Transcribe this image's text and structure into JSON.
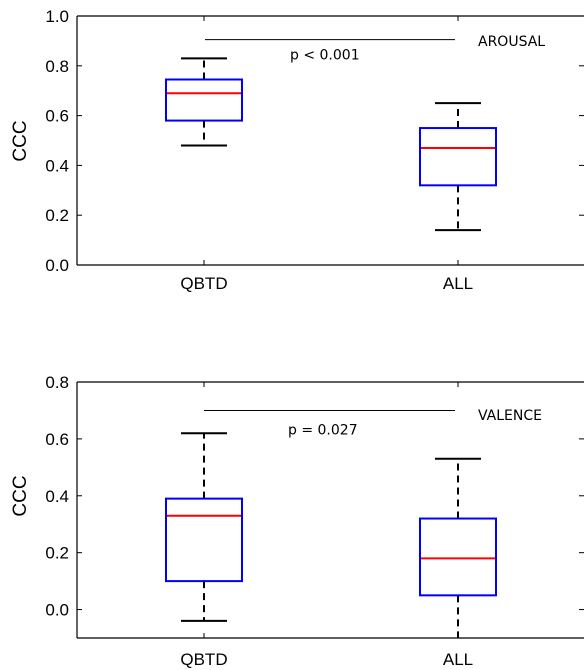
{
  "chart_data": [
    {
      "type": "box",
      "annotation": "AROUSAL",
      "ylabel": "CCC",
      "xlabel": "",
      "ylim": [
        0,
        1
      ],
      "yticks": [
        "0.0",
        "0.2",
        "0.4",
        "0.6",
        "0.8",
        "1.0"
      ],
      "ytick_values": [
        0,
        0.2,
        0.4,
        0.6,
        0.8,
        1.0
      ],
      "categories": [
        "QBTD",
        "ALL"
      ],
      "boxes": [
        {
          "whisker_low": 0.48,
          "q1": 0.58,
          "median": 0.69,
          "q3": 0.745,
          "whisker_high": 0.83
        },
        {
          "whisker_low": 0.14,
          "q1": 0.32,
          "median": 0.47,
          "q3": 0.55,
          "whisker_high": 0.65
        }
      ],
      "significance": {
        "text": "p < 0.001",
        "y": 0.905
      },
      "grid": false,
      "colors": {
        "box": "#0000ff",
        "median": "#ff0000",
        "whisker": "#000000"
      }
    },
    {
      "type": "box",
      "annotation": "VALENCE",
      "ylabel": "CCC",
      "xlabel": "",
      "ylim": [
        -0.1,
        0.8
      ],
      "yticks": [
        "0.0",
        "0.2",
        "0.4",
        "0.6",
        "0.8"
      ],
      "ytick_values": [
        0,
        0.2,
        0.4,
        0.6,
        0.8
      ],
      "categories": [
        "QBTD",
        "ALL"
      ],
      "boxes": [
        {
          "whisker_low": -0.04,
          "q1": 0.1,
          "median": 0.33,
          "q3": 0.39,
          "whisker_high": 0.62
        },
        {
          "whisker_low": -0.1,
          "q1": 0.05,
          "median": 0.18,
          "q3": 0.32,
          "whisker_high": 0.53
        }
      ],
      "significance": {
        "text": "p = 0.027",
        "y": 0.7
      },
      "grid": false,
      "colors": {
        "box": "#0000ff",
        "median": "#ff0000",
        "whisker": "#000000"
      }
    }
  ]
}
